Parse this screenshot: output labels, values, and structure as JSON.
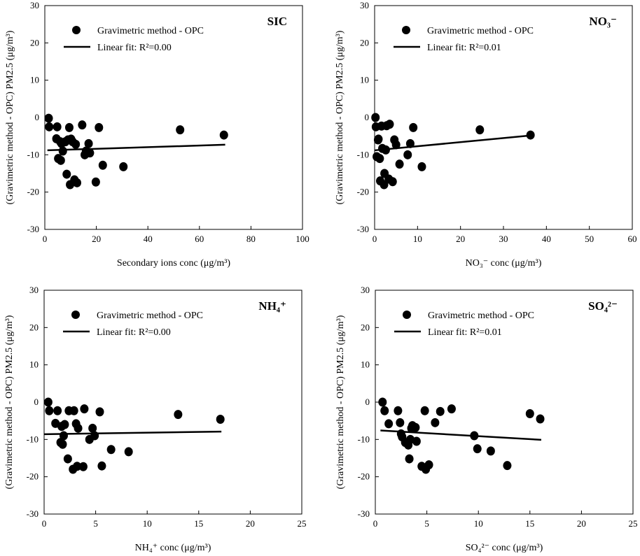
{
  "chart_data": [
    {
      "type": "scatter",
      "title": "SIC",
      "xlabel": "Secondary ions conc (μg/m³)",
      "ylabel": "(Gravimetric method - OPC) PM2.5 (μg/m³)",
      "xlim": [
        0,
        100
      ],
      "ylim": [
        -30,
        30
      ],
      "xticks": [
        0,
        20,
        40,
        60,
        80,
        100
      ],
      "yticks": [
        -30,
        -20,
        -10,
        0,
        10,
        20,
        30
      ],
      "legend": {
        "position": "top-left",
        "scatter_label": "Gravimetric method - OPC",
        "fit_label": "Linear fit: R²=0.00"
      },
      "grid": false,
      "series": [
        {
          "name": "Gravimetric method - OPC",
          "x": [
            1.5,
            1.7,
            4.5,
            4.8,
            5.2,
            6,
            6.2,
            6.5,
            7,
            8,
            8.5,
            9,
            9.5,
            9.8,
            10.2,
            10.8,
            11.5,
            12,
            12.5,
            14.5,
            15.5,
            16,
            17,
            17.5,
            19.8,
            21,
            22.5,
            30.5,
            52.5,
            69.5
          ],
          "y": [
            -0.2,
            -2.5,
            -5.7,
            -2.5,
            -11,
            -6.5,
            -11.5,
            -7,
            -9,
            -6.5,
            -15.2,
            -6,
            -2.7,
            -18,
            -5.8,
            -6.5,
            -16.7,
            -7.2,
            -17.5,
            -2,
            -10,
            -9,
            -7,
            -9.5,
            -17.3,
            -2.7,
            -12.8,
            -13.2,
            -3.3,
            -4.7
          ]
        },
        {
          "name": "Linear fit",
          "x": [
            1,
            70
          ],
          "y": [
            -8.8,
            -7.3
          ]
        }
      ]
    },
    {
      "type": "scatter",
      "title": "NO₃⁻",
      "xlabel": "NO₃⁻ conc (μg/m³)",
      "ylabel": "(Gravimetric method - OPC) PM2.5 (μg/m³)",
      "xlim": [
        0,
        60
      ],
      "ylim": [
        -30,
        30
      ],
      "xticks": [
        0,
        10,
        20,
        30,
        40,
        50,
        60
      ],
      "yticks": [
        -30,
        -20,
        -10,
        0,
        10,
        20,
        30
      ],
      "legend": {
        "position": "top-left",
        "scatter_label": "Gravimetric method - OPC",
        "fit_label": "Linear fit: R²=0.01"
      },
      "grid": false,
      "series": [
        {
          "name": "Gravimetric method - OPC",
          "x": [
            0.2,
            0.3,
            0.5,
            0.8,
            0.9,
            1.2,
            1.3,
            1.6,
            1.8,
            2.2,
            2.3,
            2.6,
            2.8,
            3.3,
            3.5,
            4.2,
            4.6,
            5,
            5.8,
            7.7,
            8.3,
            9,
            11,
            24.5,
            36.3
          ],
          "y": [
            0,
            -2.5,
            -10.5,
            -6,
            -5.8,
            -11,
            -17,
            -2.3,
            -8.3,
            -18,
            -15,
            -8.7,
            -2.2,
            -16.5,
            -1.8,
            -17.2,
            -6,
            -7.3,
            -12.5,
            -10,
            -7,
            -2.7,
            -13.2,
            -3.3,
            -4.7
          ]
        },
        {
          "name": "Linear fit",
          "x": [
            0,
            36.5
          ],
          "y": [
            -8.8,
            -4.8
          ]
        }
      ]
    },
    {
      "type": "scatter",
      "title": "NH₄⁺",
      "xlabel": "NH₄⁺ conc (μg/m³)",
      "ylabel": "(Gravimetric method - OPC) PM2.5 (μg/m³)",
      "xlim": [
        0,
        25
      ],
      "ylim": [
        -30,
        30
      ],
      "xticks": [
        0,
        5,
        10,
        15,
        20,
        25
      ],
      "yticks": [
        -30,
        -20,
        -10,
        0,
        10,
        20,
        30
      ],
      "legend": {
        "position": "top-left",
        "scatter_label": "Gravimetric method - OPC",
        "fit_label": "Linear fit: R²=0.00"
      },
      "grid": false,
      "series": [
        {
          "name": "Gravimetric method - OPC",
          "x": [
            0.4,
            0.5,
            1.1,
            1.3,
            1.6,
            1.7,
            1.8,
            1.9,
            2.0,
            2.3,
            2.4,
            2.8,
            2.9,
            3.1,
            3.2,
            3.3,
            3.8,
            3.9,
            4.4,
            4.7,
            4.9,
            5.4,
            5.6,
            6.5,
            8.2,
            13,
            17.1
          ],
          "y": [
            0,
            -2.3,
            -5.7,
            -2.3,
            -10.8,
            -6.5,
            -11.3,
            -9,
            -6,
            -15.2,
            -2.3,
            -18,
            -2.3,
            -5.8,
            -17.2,
            -7,
            -17.3,
            -1.8,
            -10,
            -7,
            -9,
            -2.6,
            -17.1,
            -12.7,
            -13.3,
            -3.3,
            -4.6
          ]
        },
        {
          "name": "Linear fit",
          "x": [
            0,
            17.2
          ],
          "y": [
            -8.6,
            -7.9
          ]
        }
      ]
    },
    {
      "type": "scatter",
      "title": "SO₄²⁻",
      "xlabel": "SO₄²⁻ conc (μg/m³)",
      "ylabel": "(Gravimetric method - OPC) PM2.5 (μg/m³)",
      "xlim": [
        0,
        25
      ],
      "ylim": [
        -30,
        30
      ],
      "xticks": [
        0,
        5,
        10,
        15,
        20,
        25
      ],
      "yticks": [
        -30,
        -20,
        -10,
        0,
        10,
        20,
        30
      ],
      "legend": {
        "position": "top-left",
        "scatter_label": "Gravimetric method - OPC",
        "fit_label": "Linear fit: R²=0.01"
      },
      "grid": false,
      "series": [
        {
          "name": "Gravimetric method - OPC",
          "x": [
            0.7,
            0.9,
            1.3,
            2.2,
            2.4,
            2.5,
            2.6,
            2.9,
            3.2,
            3.3,
            3.4,
            3.5,
            3.6,
            3.9,
            4.0,
            4.5,
            4.8,
            4.9,
            5.2,
            5.8,
            6.3,
            7.4,
            9.6,
            9.9,
            11.2,
            12.8,
            15,
            16
          ],
          "y": [
            0,
            -2.3,
            -5.8,
            -2.3,
            -5.5,
            -8.5,
            -9.3,
            -10.8,
            -11.5,
            -15.2,
            -10,
            -7,
            -6.3,
            -6.8,
            -10.5,
            -17.2,
            -2.3,
            -18,
            -16.8,
            -5.5,
            -2.5,
            -1.8,
            -9,
            -12.5,
            -13.1,
            -17,
            -3.1,
            -4.5
          ]
        },
        {
          "name": "Linear fit",
          "x": [
            0.5,
            16.1
          ],
          "y": [
            -7.6,
            -10.1
          ]
        }
      ]
    }
  ]
}
